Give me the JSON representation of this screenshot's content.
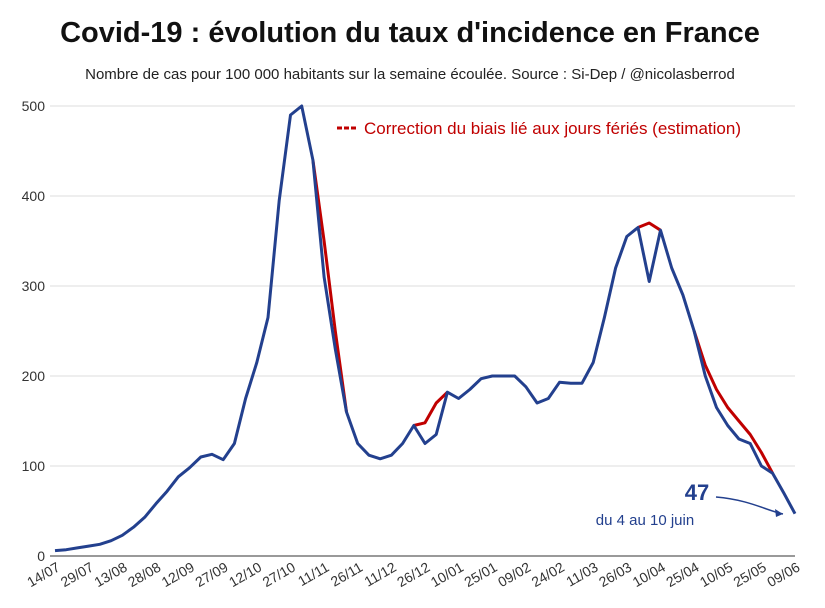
{
  "chart_data": {
    "type": "line",
    "title": "Covid-19 : évolution du taux d'incidence en France",
    "subtitle": "Nombre de cas pour 100 000 habitants sur la semaine écoulée. Source : Si-Dep  / @nicolasberrod",
    "categories": [
      "14/07",
      null,
      null,
      "29/07",
      null,
      null,
      "13/08",
      null,
      null,
      "28/08",
      null,
      null,
      "12/09",
      null,
      null,
      "27/09",
      null,
      null,
      "12/10",
      null,
      null,
      "27/10",
      null,
      null,
      "11/11",
      null,
      null,
      "26/11",
      null,
      null,
      "11/12",
      null,
      null,
      "26/12",
      null,
      null,
      "10/01",
      null,
      null,
      "25/01",
      null,
      null,
      "09/02",
      null,
      null,
      "24/02",
      null,
      null,
      "11/03",
      null,
      null,
      "26/03",
      null,
      null,
      "10/04",
      null,
      null,
      "25/04",
      null,
      null,
      "10/05",
      null,
      null,
      "25/05",
      null,
      null,
      "09/06"
    ],
    "series": [
      {
        "name": "Correction du biais lié aux jours fériés (estimation)",
        "color": "#c00000",
        "values": [
          null,
          null,
          null,
          null,
          null,
          null,
          null,
          null,
          null,
          null,
          null,
          null,
          null,
          null,
          null,
          null,
          null,
          null,
          null,
          null,
          null,
          null,
          null,
          440,
          350,
          250,
          160,
          null,
          null,
          null,
          null,
          null,
          145,
          148,
          170,
          182,
          null,
          null,
          null,
          null,
          null,
          null,
          null,
          null,
          null,
          null,
          null,
          null,
          null,
          null,
          null,
          null,
          365,
          370,
          362,
          null,
          null,
          250,
          212,
          185,
          165,
          150,
          135,
          115,
          92,
          null,
          null
        ]
      },
      {
        "color": "#23408e",
        "values": [
          6,
          7,
          9,
          11,
          13,
          17,
          23,
          32,
          43,
          58,
          72,
          88,
          98,
          110,
          113,
          107,
          125,
          175,
          215,
          265,
          395,
          490,
          500,
          440,
          310,
          230,
          160,
          125,
          112,
          108,
          112,
          125,
          145,
          125,
          135,
          182,
          175,
          185,
          197,
          200,
          200,
          200,
          188,
          170,
          175,
          193,
          192,
          192,
          215,
          265,
          320,
          355,
          365,
          305,
          362,
          320,
          290,
          250,
          200,
          165,
          145,
          130,
          125,
          100,
          92,
          70,
          47
        ]
      }
    ],
    "ylim": [
      0,
      500
    ],
    "yticks": [
      0,
      100,
      200,
      300,
      400,
      500
    ],
    "grid": true,
    "annotations": [
      "47",
      "du 4 au 10 juin"
    ]
  }
}
